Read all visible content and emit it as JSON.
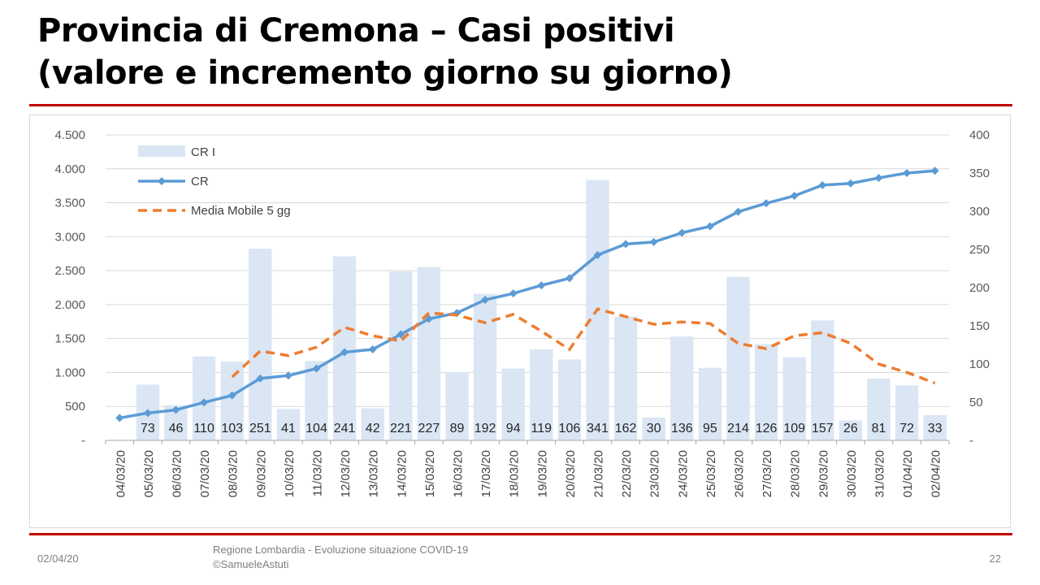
{
  "slide": {
    "title_line1": "Provincia di Cremona – Casi positivi",
    "title_line2": "(valore e incremento giorno su giorno)",
    "footer_date": "02/04/20",
    "footer_source_line1": "Regione Lombardia - Evoluzione situazione COVID-19",
    "footer_source_line2": "©SamueleAstuti",
    "page_number": "22",
    "accent_color": "#c00000"
  },
  "chart_data": {
    "type": "bar+line",
    "categories": [
      "04/03/20",
      "05/03/20",
      "06/03/20",
      "07/03/20",
      "08/03/20",
      "09/03/20",
      "10/03/20",
      "11/03/20",
      "12/03/20",
      "13/03/20",
      "14/03/20",
      "15/03/20",
      "16/03/20",
      "17/03/20",
      "18/03/20",
      "19/03/20",
      "20/03/20",
      "21/03/20",
      "22/03/20",
      "23/03/20",
      "24/03/20",
      "25/03/20",
      "26/03/20",
      "27/03/20",
      "28/03/20",
      "29/03/20",
      "30/03/20",
      "31/03/20",
      "01/04/20",
      "02/04/20"
    ],
    "left_axis": {
      "min": 0,
      "max": 4500,
      "ticks": [
        "-",
        "500",
        "1.000",
        "1.500",
        "2.000",
        "2.500",
        "3.000",
        "3.500",
        "4.000",
        "4.500"
      ]
    },
    "right_axis": {
      "min": 0,
      "max": 400,
      "ticks": [
        "-",
        "50",
        "100",
        "150",
        "200",
        "250",
        "300",
        "350",
        "400"
      ]
    },
    "series": [
      {
        "name": "CR I",
        "type": "bar",
        "axis": "right",
        "color": "#dae6f4",
        "values": [
          null,
          73,
          46,
          110,
          103,
          251,
          41,
          104,
          241,
          42,
          221,
          227,
          89,
          192,
          94,
          119,
          106,
          341,
          162,
          30,
          136,
          95,
          214,
          126,
          109,
          157,
          26,
          81,
          72,
          33
        ],
        "labels": [
          "",
          "73",
          "46",
          "110",
          "103",
          "251",
          "41",
          "104",
          "241",
          "42",
          "221",
          "227",
          "89",
          "192",
          "94",
          "119",
          "106",
          "341",
          "162",
          "30",
          "136",
          "95",
          "214",
          "126",
          "109",
          "157",
          "26",
          "81",
          "72",
          "33"
        ]
      },
      {
        "name": "CR",
        "type": "line",
        "axis": "left",
        "color": "#5b9bd5",
        "marker": "diamond",
        "values": [
          330,
          403,
          449,
          559,
          662,
          913,
          954,
          1058,
          1299,
          1341,
          1562,
          1789,
          1878,
          2070,
          2164,
          2283,
          2389,
          2730,
          2892,
          2922,
          3058,
          3153,
          3367,
          3493,
          3602,
          3759,
          3785,
          3866,
          3938,
          3971
        ]
      },
      {
        "name": "Media Mobile 5 gg",
        "type": "line",
        "axis": "right",
        "color": "#ed7d31",
        "dash": true,
        "values": [
          null,
          null,
          null,
          null,
          83,
          117,
          111,
          122,
          148,
          137,
          130,
          167,
          164,
          154,
          165,
          143,
          119,
          172,
          162,
          152,
          155,
          153,
          127,
          120,
          137,
          141,
          127,
          100,
          89,
          75
        ]
      }
    ],
    "legend": "top-left",
    "grid": true
  }
}
